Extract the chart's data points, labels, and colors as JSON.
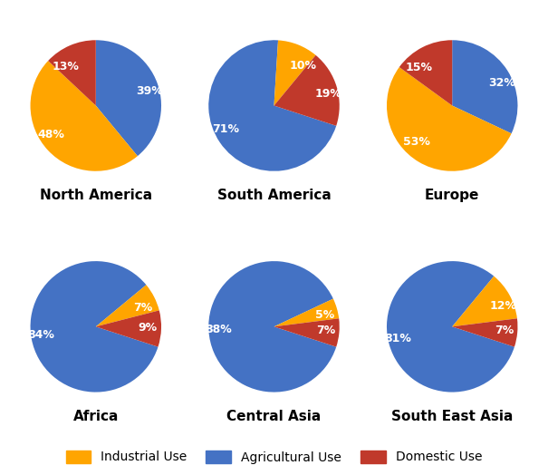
{
  "regions": [
    "North America",
    "South America",
    "Europe",
    "Africa",
    "Central Asia",
    "South East Asia"
  ],
  "pie_configs": {
    "North America": {
      "sizes": [
        39,
        48,
        13
      ],
      "colors": [
        "#4472C4",
        "#FFA500",
        "#C0392B"
      ],
      "labels": [
        "39%",
        "48%",
        "13%"
      ],
      "startangle": 90,
      "counterclock": false
    },
    "South America": {
      "sizes": [
        71,
        10,
        19
      ],
      "colors": [
        "#4472C4",
        "#FFA500",
        "#C0392B"
      ],
      "labels": [
        "71%",
        "10%",
        "19%"
      ],
      "startangle": 342,
      "counterclock": false
    },
    "Europe": {
      "sizes": [
        32,
        53,
        15
      ],
      "colors": [
        "#4472C4",
        "#FFA500",
        "#C0392B"
      ],
      "labels": [
        "32%",
        "53%",
        "15%"
      ],
      "startangle": 90,
      "counterclock": false
    },
    "Africa": {
      "sizes": [
        84,
        7,
        9
      ],
      "colors": [
        "#4472C4",
        "#FFA500",
        "#C0392B"
      ],
      "labels": [
        "84%",
        "7%",
        "9%"
      ],
      "startangle": 342,
      "counterclock": false
    },
    "Central Asia": {
      "sizes": [
        88,
        5,
        7
      ],
      "colors": [
        "#4472C4",
        "#FFA500",
        "#C0392B"
      ],
      "labels": [
        "88%",
        "5%",
        "7%"
      ],
      "startangle": 342,
      "counterclock": false
    },
    "South East Asia": {
      "sizes": [
        81,
        12,
        7
      ],
      "colors": [
        "#4472C4",
        "#FFA500",
        "#C0392B"
      ],
      "labels": [
        "81%",
        "12%",
        "7%"
      ],
      "startangle": 342,
      "counterclock": false
    }
  },
  "background_color": "#FFFFFF",
  "label_fontsize": 9,
  "title_fontsize": 11,
  "legend_fontsize": 10,
  "labeldistance": 0.65
}
